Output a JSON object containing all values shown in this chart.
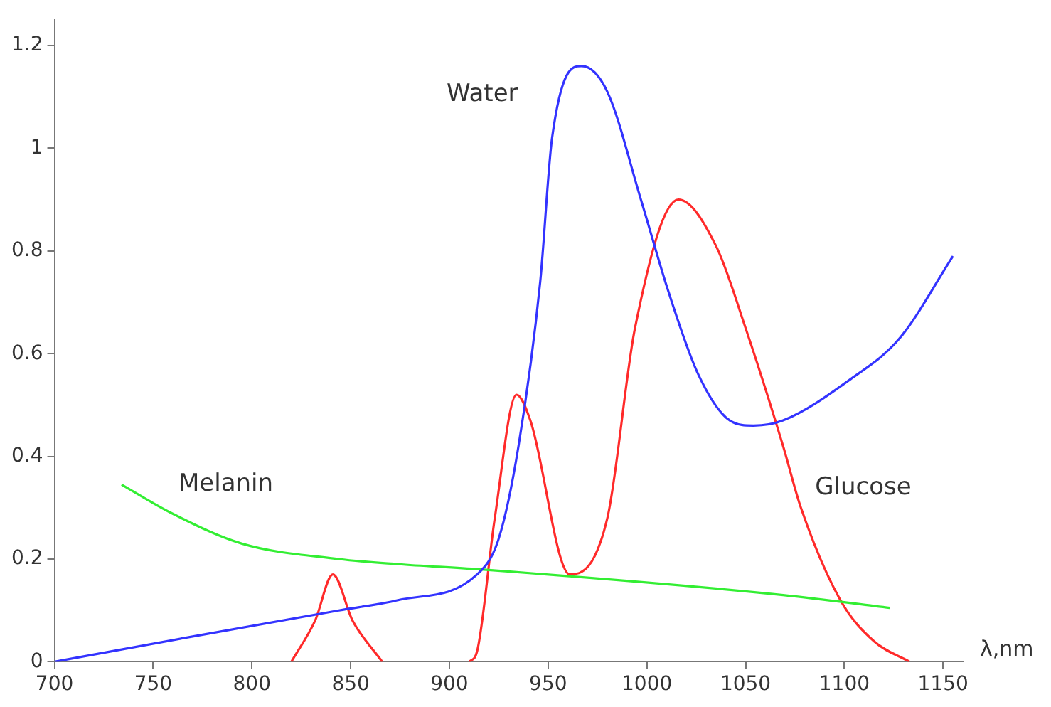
{
  "chart_data": {
    "type": "line",
    "xlabel": "λ,nm",
    "xlim": [
      700,
      1160
    ],
    "xticks": [
      700,
      750,
      800,
      850,
      900,
      950,
      1000,
      1050,
      1100,
      1150
    ],
    "ylim": [
      0,
      1.25
    ],
    "yticks": [
      0,
      0.2,
      0.4,
      0.6,
      0.8,
      1,
      1.2
    ],
    "grid": false,
    "legend": false,
    "marker": "none",
    "series": [
      {
        "name": "Water",
        "color": "#3333ff",
        "x": [
          700,
          771,
          844,
          874,
          914,
          925,
          935,
          946,
          952,
          967,
          980,
          997,
          1011,
          1026,
          1042,
          1054,
          1069,
          1103,
          1128,
          1155
        ],
        "values": [
          0,
          0.05,
          0.1,
          0.12,
          0.17,
          0.24,
          0.42,
          0.74,
          1.02,
          1.16,
          1.11,
          0.9,
          0.72,
          0.56,
          0.47,
          0.46,
          0.47,
          0.55,
          0.63,
          0.79
        ]
      },
      {
        "name": "Melanin",
        "color": "#33ee33",
        "x": [
          734,
          759,
          795,
          844,
          874,
          915,
          1069,
          1123
        ],
        "values": [
          0.345,
          0.29,
          0.23,
          0.2,
          0.19,
          0.18,
          0.13,
          0.105
        ]
      },
      {
        "name": "Glucose",
        "color": "#ff2a2a",
        "x": [
          820,
          832,
          841,
          851,
          866,
          888,
          910,
          914,
          923,
          934,
          941,
          961,
          980,
          994,
          1016,
          1035,
          1050,
          1069,
          1078,
          1098,
          1115,
          1133
        ],
        "values": [
          0,
          0.08,
          0.17,
          0.08,
          0,
          null,
          0,
          0.02,
          0.28,
          0.52,
          0.47,
          0.17,
          0.28,
          0.65,
          0.9,
          0.81,
          0.65,
          0.42,
          0.3,
          0.12,
          0.04,
          0
        ]
      }
    ]
  }
}
